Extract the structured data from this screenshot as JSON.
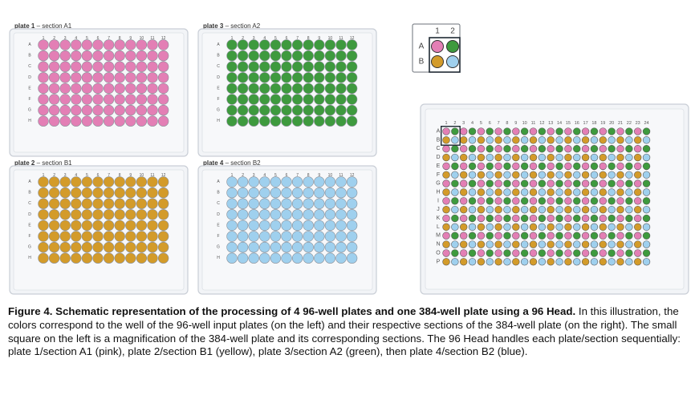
{
  "plates": [
    {
      "key": "p1",
      "label": "plate 1",
      "section": "section A1",
      "color": "#e37fb5"
    },
    {
      "key": "p3",
      "label": "plate 3",
      "section": "section A2",
      "color": "#3e9a3e"
    },
    {
      "key": "p2",
      "label": "plate 2",
      "section": "section B1",
      "color": "#d39b2a"
    },
    {
      "key": "p4",
      "label": "plate 4",
      "section": "section B2",
      "color": "#9fd0ee"
    }
  ],
  "sep": " – ",
  "cols96": [
    "1",
    "2",
    "3",
    "4",
    "5",
    "6",
    "7",
    "8",
    "9",
    "10",
    "11",
    "12"
  ],
  "rows96": [
    "A",
    "B",
    "C",
    "D",
    "E",
    "F",
    "G",
    "H"
  ],
  "legend": {
    "cols": [
      "1",
      "2"
    ],
    "rows": [
      "A",
      "B"
    ],
    "grid": [
      [
        "p1",
        "p3"
      ],
      [
        "p2",
        "p4"
      ]
    ]
  },
  "plate384": {
    "cols": [
      "1",
      "2",
      "3",
      "4",
      "5",
      "6",
      "7",
      "8",
      "9",
      "10",
      "11",
      "12",
      "13",
      "14",
      "15",
      "16",
      "17",
      "18",
      "19",
      "20",
      "21",
      "22",
      "23",
      "24"
    ],
    "rows": [
      "A",
      "B",
      "C",
      "D",
      "E",
      "F",
      "G",
      "H",
      "I",
      "J",
      "K",
      "L",
      "M",
      "N",
      "O",
      "P"
    ],
    "pattern": [
      [
        "p1",
        "p3"
      ],
      [
        "p2",
        "p4"
      ]
    ]
  },
  "caption": {
    "title": "Figure 4. Schematic representation of the processing of 4 96-well plates and one 384-well plate using a 96 Head.",
    "body": "In this illustration, the colors correspond to the well of the 96-well input plates (on the left) and their respective sections of the 384-well plate (on the right). The small square on the left is a magnification of the 384-well plate and its corresponding sections. The 96 Head handles each plate/section sequentially: plate 1/section A1 (pink), plate 2/section B1 (yellow), plate 3/section A2 (green), then plate 4/section B2 (blue)."
  },
  "colors": {
    "plate_fill": "#f2f4f7",
    "plate_stroke": "#c9ced6",
    "well_stroke": "#8a9099",
    "box_stroke": "#1f2a33"
  }
}
